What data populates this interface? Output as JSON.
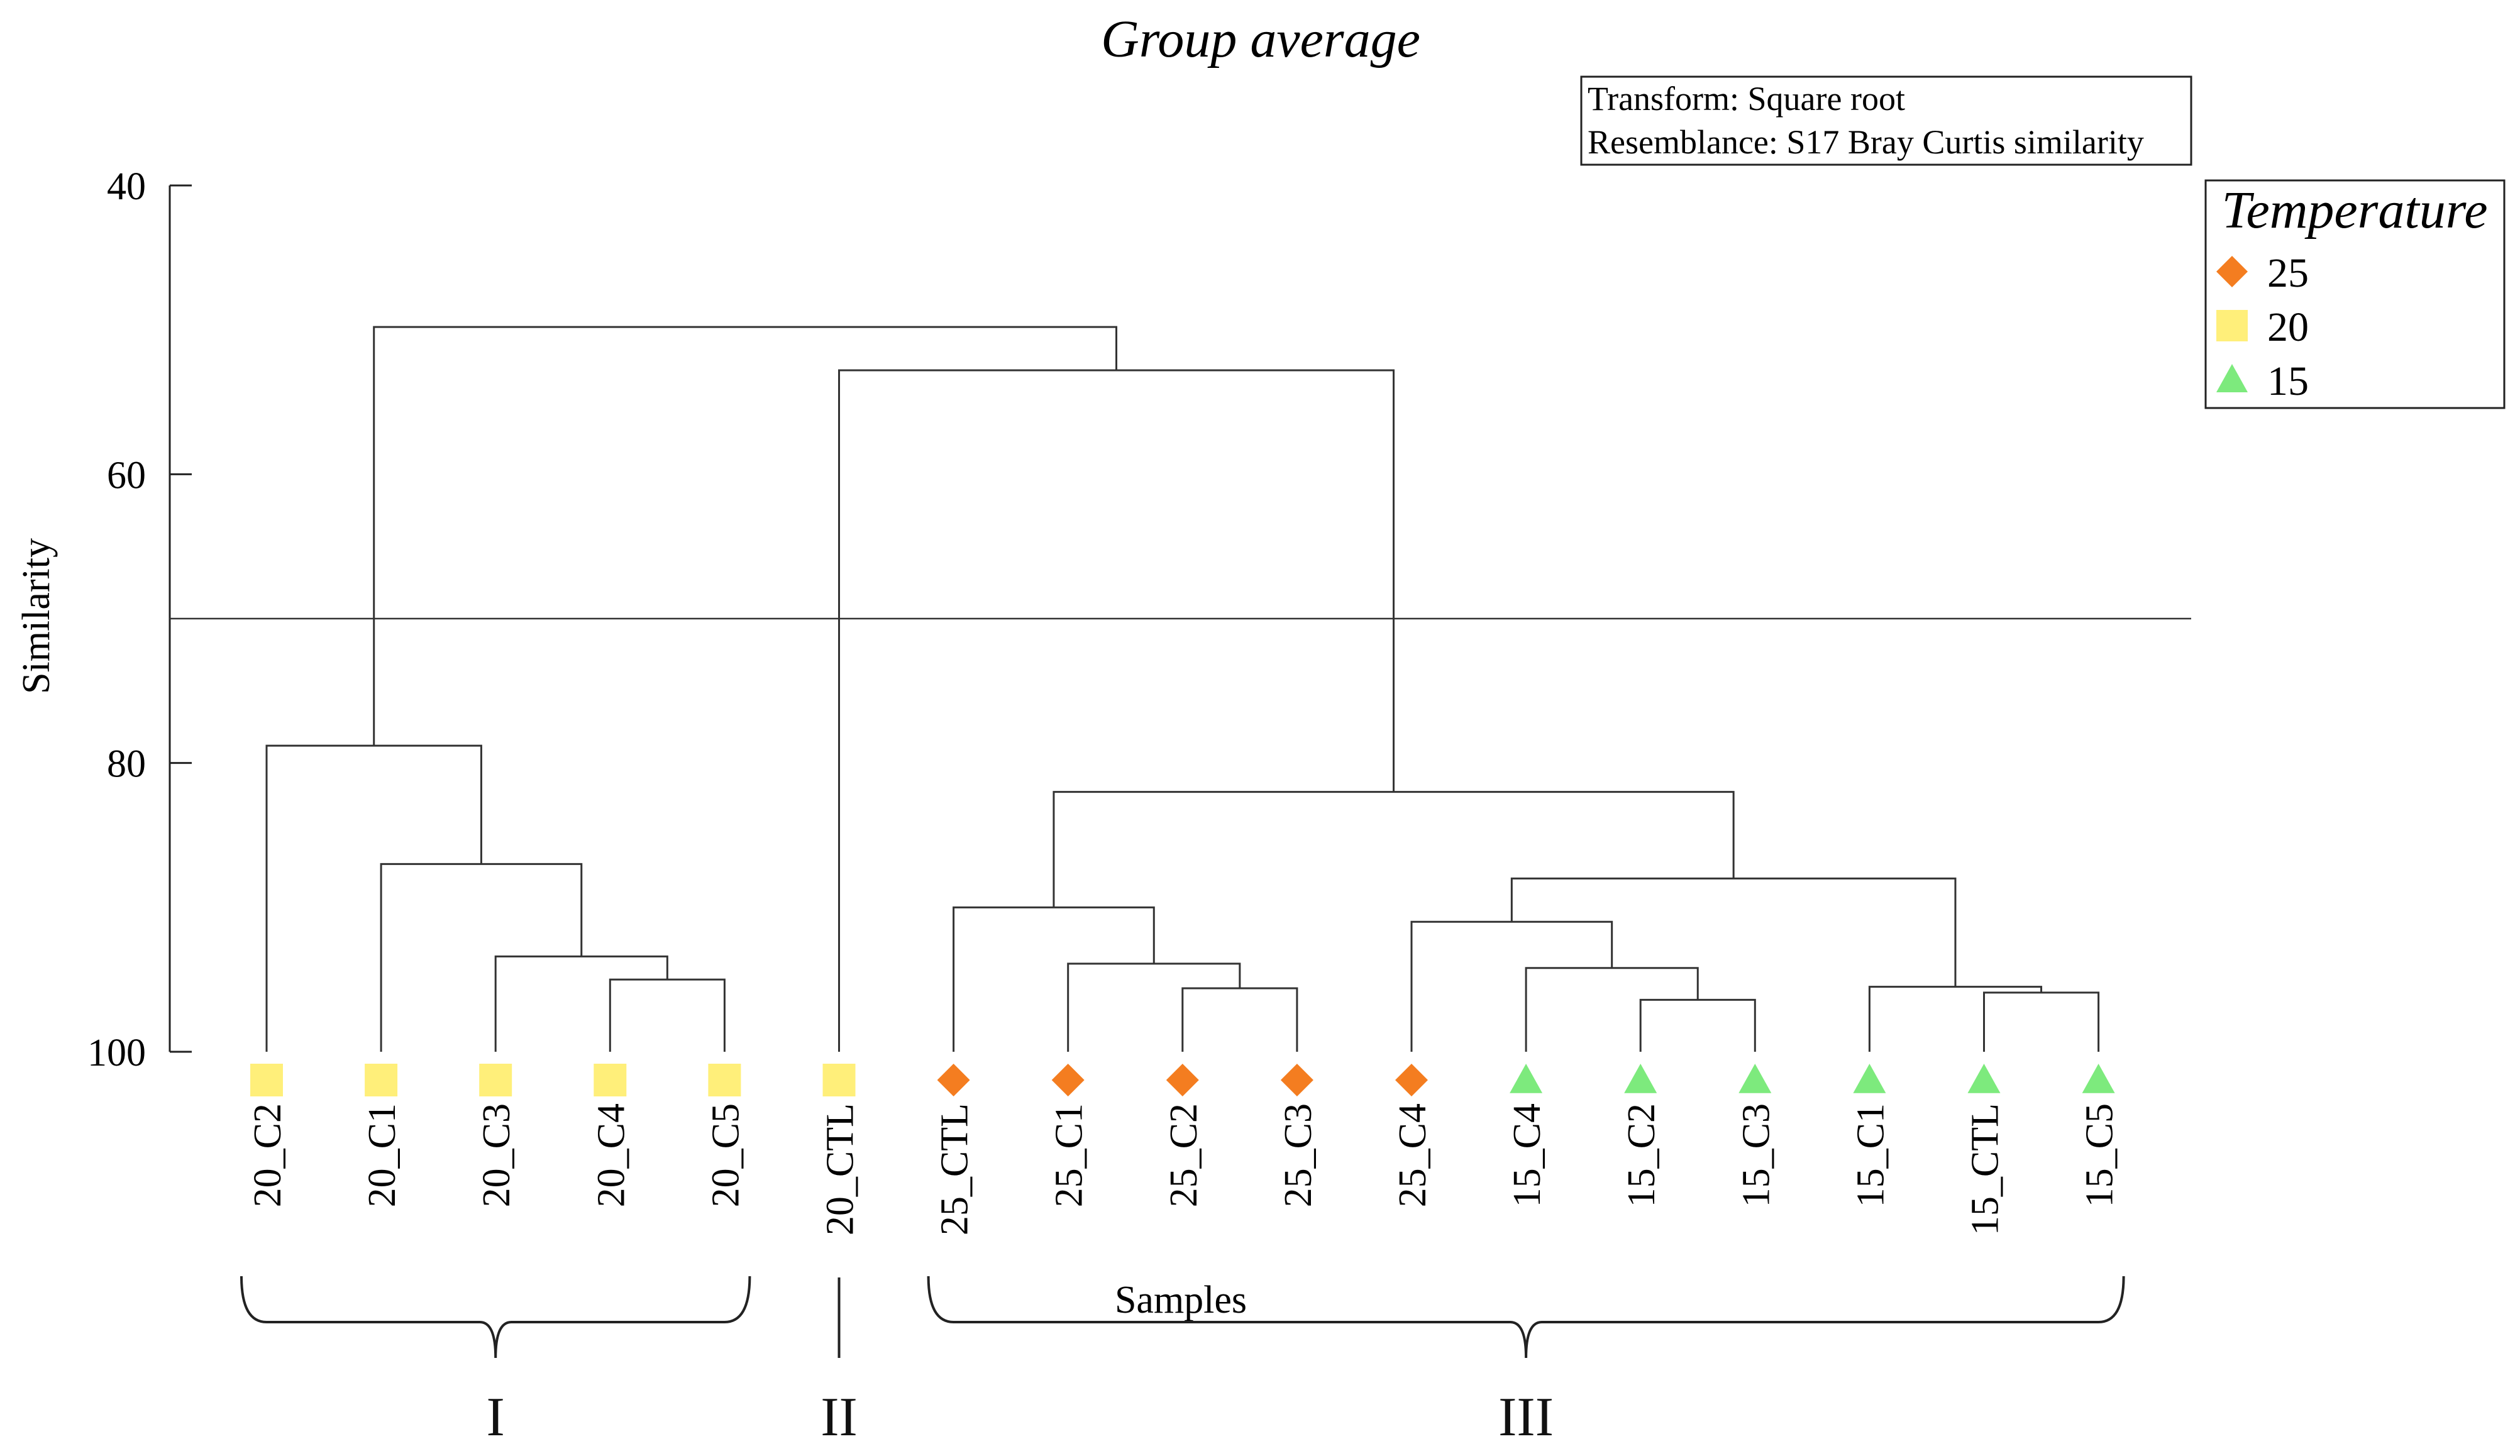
{
  "chart_data": {
    "type": "dendrogram",
    "title": "Group average",
    "ylabel": "Similarity",
    "xlabel": "Samples",
    "yticks": [
      40,
      60,
      80,
      100
    ],
    "ylim": [
      40,
      100
    ],
    "cut_line": 70,
    "info_lines": [
      "Transform: Square root",
      "Resemblance: S17 Bray Curtis similarity"
    ],
    "legend": {
      "title": "Temperature",
      "items": [
        {
          "label": "25",
          "marker": "diamond",
          "color": "#f47d20"
        },
        {
          "label": "20",
          "marker": "square",
          "color": "#ffef7a"
        },
        {
          "label": "15",
          "marker": "triangle",
          "color": "#7dea7d"
        }
      ]
    },
    "leaves": [
      {
        "label": "20_C2",
        "temp": "20"
      },
      {
        "label": "20_C1",
        "temp": "20"
      },
      {
        "label": "20_C3",
        "temp": "20"
      },
      {
        "label": "20_C4",
        "temp": "20"
      },
      {
        "label": "20_C5",
        "temp": "20"
      },
      {
        "label": "20_CTL",
        "temp": "20"
      },
      {
        "label": "25_CTL",
        "temp": "25"
      },
      {
        "label": "25_C1",
        "temp": "25"
      },
      {
        "label": "25_C2",
        "temp": "25"
      },
      {
        "label": "25_C3",
        "temp": "25"
      },
      {
        "label": "25_C4",
        "temp": "25"
      },
      {
        "label": "15_C4",
        "temp": "15"
      },
      {
        "label": "15_C2",
        "temp": "15"
      },
      {
        "label": "15_C3",
        "temp": "15"
      },
      {
        "label": "15_C1",
        "temp": "15"
      },
      {
        "label": "15_CTL",
        "temp": "15"
      },
      {
        "label": "15_C5",
        "temp": "15"
      }
    ],
    "merges": [
      {
        "id": "a",
        "left": 3,
        "right": 4,
        "similarity": 95.0
      },
      {
        "id": "b",
        "left": 2,
        "right": "a",
        "similarity": 93.4
      },
      {
        "id": "c",
        "left": 1,
        "right": "b",
        "similarity": 87.0
      },
      {
        "id": "d",
        "left": 0,
        "right": "c",
        "similarity": 78.8
      },
      {
        "id": "e",
        "left": 8,
        "right": 9,
        "similarity": 95.6
      },
      {
        "id": "f",
        "left": 7,
        "right": "e",
        "similarity": 93.9
      },
      {
        "id": "g",
        "left": 6,
        "right": "f",
        "similarity": 90.0
      },
      {
        "id": "h",
        "left": 12,
        "right": 13,
        "similarity": 96.4
      },
      {
        "id": "i",
        "left": 11,
        "right": "h",
        "similarity": 94.2
      },
      {
        "id": "j",
        "left": 10,
        "right": "i",
        "similarity": 91.0
      },
      {
        "id": "k",
        "left": 15,
        "right": 16,
        "similarity": 95.9
      },
      {
        "id": "l",
        "left": 14,
        "right": "k",
        "similarity": 95.5
      },
      {
        "id": "m",
        "left": "j",
        "right": "l",
        "similarity": 88.0
      },
      {
        "id": "n",
        "left": "g",
        "right": "m",
        "similarity": 82.0
      },
      {
        "id": "o",
        "left": 5,
        "right": "n",
        "similarity": 52.8
      },
      {
        "id": "p",
        "left": "d",
        "right": "o",
        "similarity": 49.8
      }
    ],
    "groups": [
      {
        "label": "I",
        "from": 0,
        "to": 4
      },
      {
        "label": "II",
        "from": 5,
        "to": 5
      },
      {
        "label": "III",
        "from": 6,
        "to": 16
      }
    ]
  }
}
